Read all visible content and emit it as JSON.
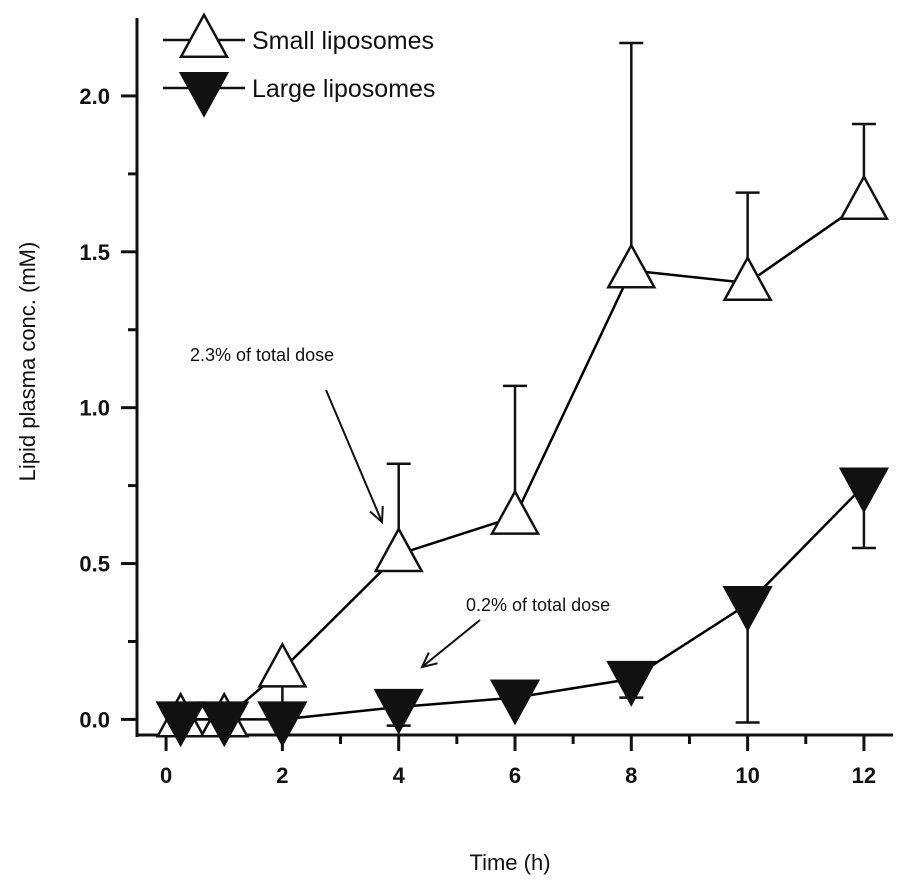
{
  "chart_data": {
    "type": "line",
    "xlabel": "Time (h)",
    "ylabel": "Lipid plasma conc. (mM)",
    "xlim": [
      -0.5,
      12.5
    ],
    "ylim": [
      -0.05,
      2.25
    ],
    "x_ticks": [
      0,
      2,
      4,
      6,
      8,
      10,
      12
    ],
    "x_tick_labels": [
      "0",
      "2",
      "4",
      "6",
      "8",
      "10",
      "12"
    ],
    "y_ticks": [
      0,
      0.5,
      1,
      1.5,
      2
    ],
    "y_tick_labels": [
      "0.0",
      "0.5",
      "1.0",
      "1.5",
      "2.0"
    ],
    "grid": false,
    "legend_position": "top-left",
    "series": [
      {
        "name": "Small liposomes",
        "marker": "open-triangle-up",
        "color": "#000000",
        "x": [
          0.25,
          1,
          2,
          4,
          6,
          8,
          10,
          12
        ],
        "y": [
          0.0,
          0.0,
          0.16,
          0.53,
          0.65,
          1.44,
          1.4,
          1.66
        ],
        "error_upper": [
          null,
          null,
          0.05,
          0.82,
          1.07,
          2.17,
          1.69,
          1.91
        ]
      },
      {
        "name": "Large liposomes",
        "marker": "filled-triangle-down",
        "color": "#000000",
        "x": [
          0.25,
          1,
          2,
          4,
          6,
          8,
          10,
          12
        ],
        "y": [
          0.0,
          0.0,
          0.0,
          0.04,
          0.07,
          0.13,
          0.37,
          0.75
        ],
        "error_lower": [
          null,
          null,
          null,
          -0.02,
          null,
          0.07,
          -0.01,
          0.55
        ]
      }
    ],
    "annotations": [
      {
        "text": "2.3% of total dose",
        "x": 3.45,
        "y": 1.16,
        "arrow_to": [
          3.5,
          0.62
        ]
      },
      {
        "text": "0.2% of total dose",
        "x": 7.5,
        "y": 0.37,
        "arrow_to": [
          4.2,
          0.15
        ]
      }
    ]
  }
}
